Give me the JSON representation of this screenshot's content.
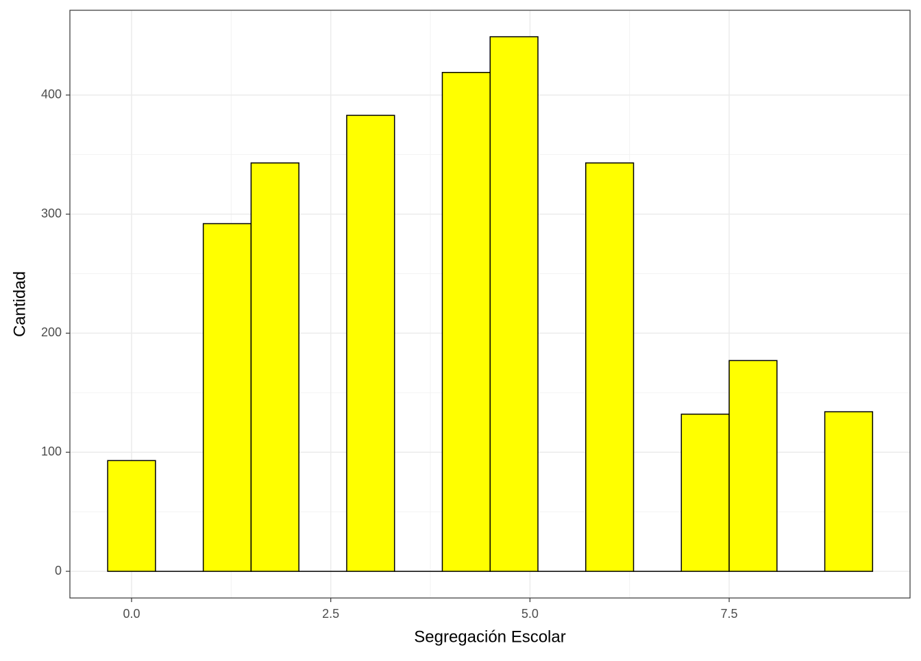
{
  "chart_data": {
    "type": "histogram",
    "x_label": "Segregación Escolar",
    "y_label": "Cantidad",
    "bins": [
      -0.3,
      0.3,
      0.9,
      1.5,
      2.1,
      2.7,
      3.3,
      3.9,
      4.5,
      5.1,
      5.7,
      6.3,
      6.9,
      7.5,
      8.1,
      8.7,
      9.3
    ],
    "values": [
      93,
      0,
      292,
      343,
      0,
      383,
      0,
      419,
      449,
      0,
      343,
      0,
      132,
      177,
      0,
      134
    ],
    "color": "#ffff00",
    "edge_color": "#000000",
    "xlim": [
      -0.774,
      9.77
    ],
    "ylim": [
      -22.4,
      471.2
    ],
    "xticks": [
      {
        "value": 0,
        "label": "0.0"
      },
      2.5,
      {
        "value": 5,
        "label": "5.0"
      },
      7.5
    ],
    "yticks": [
      0,
      100,
      200,
      300,
      400
    ],
    "grid": true
  }
}
